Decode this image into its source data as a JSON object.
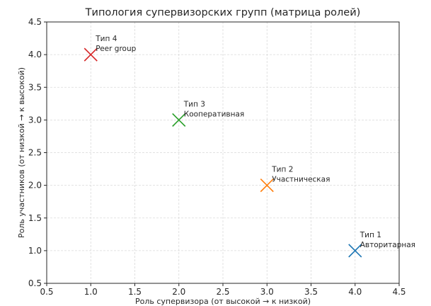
{
  "chart_data": {
    "type": "scatter",
    "title": "Типология супервизорских групп (матрица ролей)",
    "xlabel": "Роль супервизора (от высокой → к низкой)",
    "ylabel": "Роль участников (от низкой → к высокой)",
    "xlim": [
      0.5,
      4.5
    ],
    "ylim": [
      0.5,
      4.5
    ],
    "xticks": [
      "0.5",
      "1.0",
      "1.5",
      "2.0",
      "2.5",
      "3.0",
      "3.5",
      "4.0",
      "4.5"
    ],
    "yticks": [
      "0.5",
      "1.0",
      "1.5",
      "2.0",
      "2.5",
      "3.0",
      "3.5",
      "4.0",
      "4.5"
    ],
    "grid": true,
    "marker": "x",
    "points": [
      {
        "x": 4,
        "y": 1,
        "label_line1": "Тип 1",
        "label_line2": "Авторитарная",
        "color": "#1f77b4"
      },
      {
        "x": 3,
        "y": 2,
        "label_line1": "Тип 2",
        "label_line2": "Участническая",
        "color": "#ff7f0e"
      },
      {
        "x": 2,
        "y": 3,
        "label_line1": "Тип 3",
        "label_line2": "Кооперативная",
        "color": "#2ca02c"
      },
      {
        "x": 1,
        "y": 4,
        "label_line1": "Тип 4",
        "label_line2": "Peer group",
        "color": "#d62728"
      }
    ]
  }
}
